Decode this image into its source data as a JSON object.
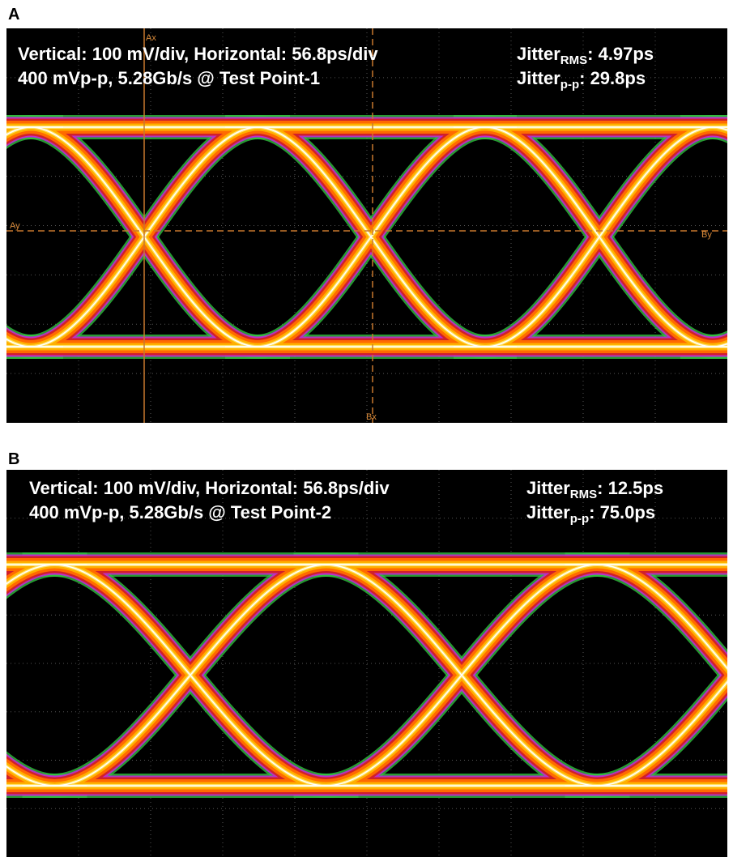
{
  "panels": [
    {
      "label": "A",
      "line1": "Vertical: 100 mV/div, Horizontal: 56.8ps/div",
      "line2": "400 mVp-p, 5.28Gb/s @ Test Point-1",
      "jitter_rms": {
        "base": "Jitter",
        "sub": "RMS",
        "value": ": 4.97ps"
      },
      "jitter_pp": {
        "base": "Jitter",
        "sub": "p-p",
        "value": ": 29.8ps"
      },
      "cursors": {
        "ax": "Ax",
        "ay": "Ay",
        "bx": "Bx",
        "by": "By"
      }
    },
    {
      "label": "B",
      "line1": "Vertical: 100 mV/div, Horizontal: 56.8ps/div",
      "line2": "400 mVp-p, 5.28Gb/s @ Test Point-2",
      "jitter_rms": {
        "base": "Jitter",
        "sub": "RMS",
        "value": ": 12.5ps"
      },
      "jitter_pp": {
        "base": "Jitter",
        "sub": "p-p",
        "value": ": 75.0ps"
      }
    }
  ]
}
